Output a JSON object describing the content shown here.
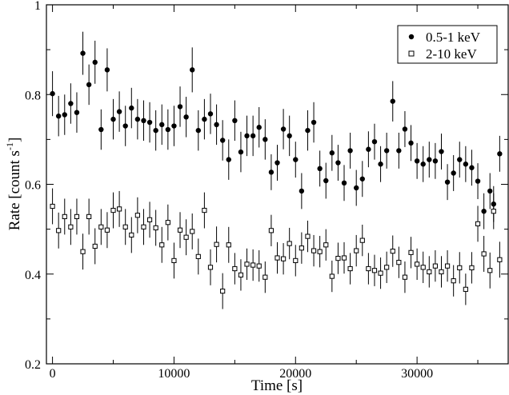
{
  "chart_data": {
    "type": "scatter",
    "xlabel": "Time [s]",
    "ylabel": "Rate [count s",
    "ylabel_sup": "-1",
    "ylabel_close": "]",
    "xlim": [
      -500,
      37500
    ],
    "ylim": [
      0.2,
      1.0
    ],
    "xticks": [
      0,
      10000,
      20000,
      30000
    ],
    "yticks": [
      0.2,
      0.4,
      0.6,
      0.8,
      1.0
    ],
    "ytick_labels": [
      "0.2",
      "0.4",
      "0.6",
      "0.8",
      "1"
    ],
    "legend_position": "top-right",
    "grid": false,
    "series": [
      {
        "name": "0.5-1 keV",
        "marker": "filled-circle",
        "color": "#000000",
        "points": [
          [
            0,
            0.802,
            0.05
          ],
          [
            500,
            0.752,
            0.045
          ],
          [
            1000,
            0.755,
            0.045
          ],
          [
            1500,
            0.78,
            0.045
          ],
          [
            2000,
            0.76,
            0.045
          ],
          [
            2500,
            0.892,
            0.048
          ],
          [
            3000,
            0.822,
            0.045
          ],
          [
            3500,
            0.872,
            0.048
          ],
          [
            4000,
            0.722,
            0.045
          ],
          [
            4500,
            0.855,
            0.048
          ],
          [
            5000,
            0.745,
            0.045
          ],
          [
            5500,
            0.762,
            0.045
          ],
          [
            6000,
            0.73,
            0.045
          ],
          [
            6500,
            0.77,
            0.045
          ],
          [
            7000,
            0.745,
            0.045
          ],
          [
            7500,
            0.742,
            0.045
          ],
          [
            8000,
            0.738,
            0.045
          ],
          [
            8500,
            0.72,
            0.045
          ],
          [
            9000,
            0.733,
            0.045
          ],
          [
            9500,
            0.722,
            0.045
          ],
          [
            10000,
            0.73,
            0.045
          ],
          [
            10500,
            0.773,
            0.045
          ],
          [
            11000,
            0.75,
            0.045
          ],
          [
            11500,
            0.855,
            0.05
          ],
          [
            12000,
            0.72,
            0.045
          ],
          [
            12500,
            0.745,
            0.045
          ],
          [
            13000,
            0.757,
            0.045
          ],
          [
            13500,
            0.733,
            0.045
          ],
          [
            14000,
            0.698,
            0.045
          ],
          [
            14500,
            0.655,
            0.045
          ],
          [
            15000,
            0.742,
            0.045
          ],
          [
            15500,
            0.672,
            0.045
          ],
          [
            16000,
            0.708,
            0.045
          ],
          [
            16500,
            0.708,
            0.045
          ],
          [
            17000,
            0.727,
            0.045
          ],
          [
            17500,
            0.7,
            0.045
          ],
          [
            18000,
            0.627,
            0.04
          ],
          [
            18500,
            0.648,
            0.04
          ],
          [
            19000,
            0.723,
            0.045
          ],
          [
            19500,
            0.708,
            0.045
          ],
          [
            20000,
            0.655,
            0.04
          ],
          [
            20500,
            0.585,
            0.04
          ],
          [
            21000,
            0.72,
            0.045
          ],
          [
            21500,
            0.738,
            0.045
          ],
          [
            22000,
            0.635,
            0.04
          ],
          [
            22500,
            0.608,
            0.04
          ],
          [
            23000,
            0.67,
            0.04
          ],
          [
            23500,
            0.648,
            0.04
          ],
          [
            24000,
            0.603,
            0.04
          ],
          [
            24500,
            0.675,
            0.04
          ],
          [
            25000,
            0.592,
            0.04
          ],
          [
            25500,
            0.612,
            0.04
          ],
          [
            26000,
            0.678,
            0.04
          ],
          [
            26500,
            0.695,
            0.04
          ],
          [
            27000,
            0.645,
            0.04
          ],
          [
            27500,
            0.675,
            0.04
          ],
          [
            28000,
            0.785,
            0.045
          ],
          [
            28500,
            0.675,
            0.04
          ],
          [
            29000,
            0.723,
            0.04
          ],
          [
            29500,
            0.692,
            0.04
          ],
          [
            30000,
            0.652,
            0.04
          ],
          [
            30500,
            0.645,
            0.04
          ],
          [
            31000,
            0.655,
            0.04
          ],
          [
            31500,
            0.652,
            0.04
          ],
          [
            32000,
            0.673,
            0.04
          ],
          [
            32500,
            0.605,
            0.04
          ],
          [
            33000,
            0.625,
            0.04
          ],
          [
            33500,
            0.655,
            0.04
          ],
          [
            34000,
            0.645,
            0.04
          ],
          [
            34500,
            0.637,
            0.04
          ],
          [
            35000,
            0.607,
            0.04
          ],
          [
            35500,
            0.54,
            0.04
          ],
          [
            36000,
            0.585,
            0.04
          ],
          [
            36300,
            0.556,
            0.04
          ],
          [
            36800,
            0.668,
            0.04
          ]
        ]
      },
      {
        "name": "2-10 keV",
        "marker": "open-square",
        "color": "#000000",
        "points": [
          [
            0,
            0.551,
            0.04
          ],
          [
            500,
            0.497,
            0.04
          ],
          [
            1000,
            0.528,
            0.04
          ],
          [
            1500,
            0.505,
            0.04
          ],
          [
            2000,
            0.528,
            0.04
          ],
          [
            2500,
            0.45,
            0.04
          ],
          [
            3000,
            0.528,
            0.04
          ],
          [
            3500,
            0.462,
            0.04
          ],
          [
            4000,
            0.505,
            0.04
          ],
          [
            4500,
            0.498,
            0.04
          ],
          [
            5000,
            0.542,
            0.04
          ],
          [
            5500,
            0.545,
            0.04
          ],
          [
            6000,
            0.505,
            0.04
          ],
          [
            6500,
            0.487,
            0.04
          ],
          [
            7000,
            0.531,
            0.04
          ],
          [
            7500,
            0.505,
            0.04
          ],
          [
            8000,
            0.521,
            0.04
          ],
          [
            8500,
            0.503,
            0.04
          ],
          [
            9000,
            0.465,
            0.04
          ],
          [
            9500,
            0.515,
            0.04
          ],
          [
            10000,
            0.43,
            0.04
          ],
          [
            10500,
            0.498,
            0.04
          ],
          [
            11000,
            0.482,
            0.04
          ],
          [
            11500,
            0.495,
            0.04
          ],
          [
            12000,
            0.439,
            0.04
          ],
          [
            12500,
            0.542,
            0.04
          ],
          [
            13000,
            0.415,
            0.04
          ],
          [
            13500,
            0.466,
            0.04
          ],
          [
            14000,
            0.362,
            0.04
          ],
          [
            14500,
            0.465,
            0.04
          ],
          [
            15000,
            0.412,
            0.035
          ],
          [
            15500,
            0.398,
            0.035
          ],
          [
            16000,
            0.422,
            0.035
          ],
          [
            16500,
            0.42,
            0.035
          ],
          [
            17000,
            0.418,
            0.035
          ],
          [
            17500,
            0.393,
            0.035
          ],
          [
            18000,
            0.497,
            0.035
          ],
          [
            18500,
            0.436,
            0.035
          ],
          [
            19000,
            0.434,
            0.035
          ],
          [
            19500,
            0.468,
            0.035
          ],
          [
            20000,
            0.43,
            0.035
          ],
          [
            20500,
            0.458,
            0.035
          ],
          [
            21000,
            0.484,
            0.035
          ],
          [
            21500,
            0.452,
            0.035
          ],
          [
            22000,
            0.45,
            0.035
          ],
          [
            22500,
            0.465,
            0.035
          ],
          [
            23000,
            0.395,
            0.035
          ],
          [
            23500,
            0.435,
            0.035
          ],
          [
            24000,
            0.436,
            0.035
          ],
          [
            24500,
            0.412,
            0.035
          ],
          [
            25000,
            0.452,
            0.035
          ],
          [
            25500,
            0.475,
            0.035
          ],
          [
            26000,
            0.412,
            0.035
          ],
          [
            26500,
            0.408,
            0.035
          ],
          [
            27000,
            0.402,
            0.035
          ],
          [
            27500,
            0.415,
            0.035
          ],
          [
            28000,
            0.451,
            0.035
          ],
          [
            28500,
            0.426,
            0.035
          ],
          [
            29000,
            0.393,
            0.035
          ],
          [
            29500,
            0.448,
            0.035
          ],
          [
            30000,
            0.422,
            0.035
          ],
          [
            30500,
            0.415,
            0.035
          ],
          [
            31000,
            0.405,
            0.035
          ],
          [
            31500,
            0.418,
            0.035
          ],
          [
            32000,
            0.405,
            0.035
          ],
          [
            32500,
            0.418,
            0.035
          ],
          [
            33000,
            0.385,
            0.035
          ],
          [
            33500,
            0.414,
            0.035
          ],
          [
            34000,
            0.366,
            0.035
          ],
          [
            34500,
            0.414,
            0.035
          ],
          [
            35000,
            0.512,
            0.04
          ],
          [
            35500,
            0.445,
            0.04
          ],
          [
            36000,
            0.408,
            0.04
          ],
          [
            36300,
            0.54,
            0.04
          ],
          [
            36800,
            0.432,
            0.04
          ]
        ]
      }
    ]
  }
}
